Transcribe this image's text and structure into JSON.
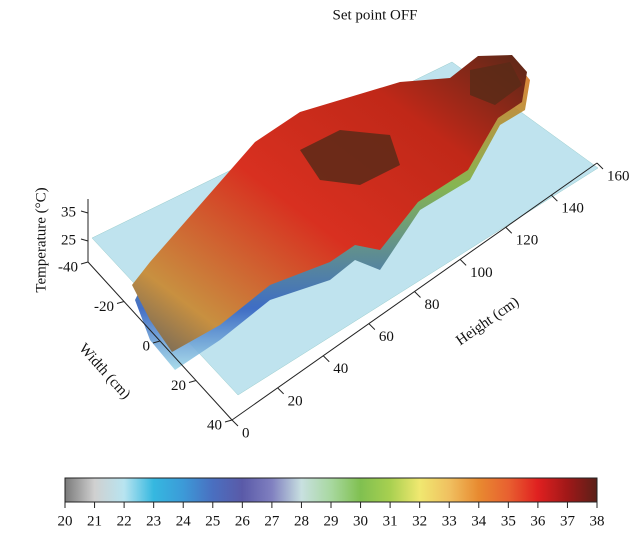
{
  "chart_data": {
    "type": "surface",
    "title": "Set point OFF",
    "x_label": "Height (cm)",
    "y_label": "Width (cm)",
    "z_label": "Temperature (°C)",
    "xlim": [
      0,
      160
    ],
    "xticks": [
      0,
      20,
      40,
      60,
      80,
      100,
      120,
      140,
      160
    ],
    "ylim": [
      -40,
      40
    ],
    "yticks": [
      -40,
      -20,
      0,
      20,
      40
    ],
    "zlim": [
      20,
      40
    ],
    "zticks": [
      25,
      35
    ],
    "colorbar": {
      "lim": [
        20,
        38
      ],
      "ticks": [
        20,
        21,
        22,
        23,
        24,
        25,
        26,
        27,
        28,
        29,
        30,
        31,
        32,
        33,
        34,
        35,
        36,
        37,
        38
      ],
      "colors": [
        "#7a7a7a",
        "#d0d0d0",
        "#b8e4f0",
        "#35b8e0",
        "#3c9ad8",
        "#4a6fc0",
        "#5a5aa8",
        "#8080c0",
        "#c8e0e0",
        "#a8d8a0",
        "#80c050",
        "#a8d050",
        "#f0e870",
        "#f0c060",
        "#e88a30",
        "#e86030",
        "#e02020",
        "#a01818",
        "#5a2018"
      ]
    }
  }
}
